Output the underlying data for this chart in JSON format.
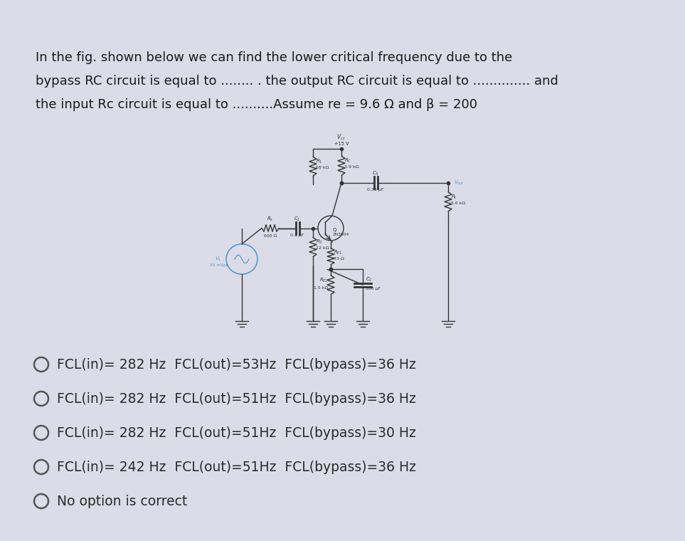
{
  "bg_color": "#dcdce8",
  "card_bg": "#ffffff",
  "title_lines": [
    "In the fig. shown below we can find the lower critical frequency due to the",
    "bypass RC circuit is equal to ........ . the output RC circuit is equal to .............. and",
    "the input Rc circuit is equal to ..........Assume re = 9.6 Ω and β = 200"
  ],
  "options": [
    "FCL(in)= 282 Hz  FCL(out)=53Hz  FCL(bypass)=36 Hz",
    "FCL(in)= 282 Hz  FCL(out)=51Hz  FCL(bypass)=36 Hz",
    "FCL(in)= 282 Hz  FCL(out)=51Hz  FCL(bypass)=30 Hz",
    "FCL(in)= 242 Hz  FCL(out)=51Hz  FCL(bypass)=36 Hz",
    "No option is correct"
  ],
  "text_color": "#1a1a1a",
  "option_color": "#2a2a2a",
  "title_fontsize": 13.0,
  "option_fontsize": 13.5
}
